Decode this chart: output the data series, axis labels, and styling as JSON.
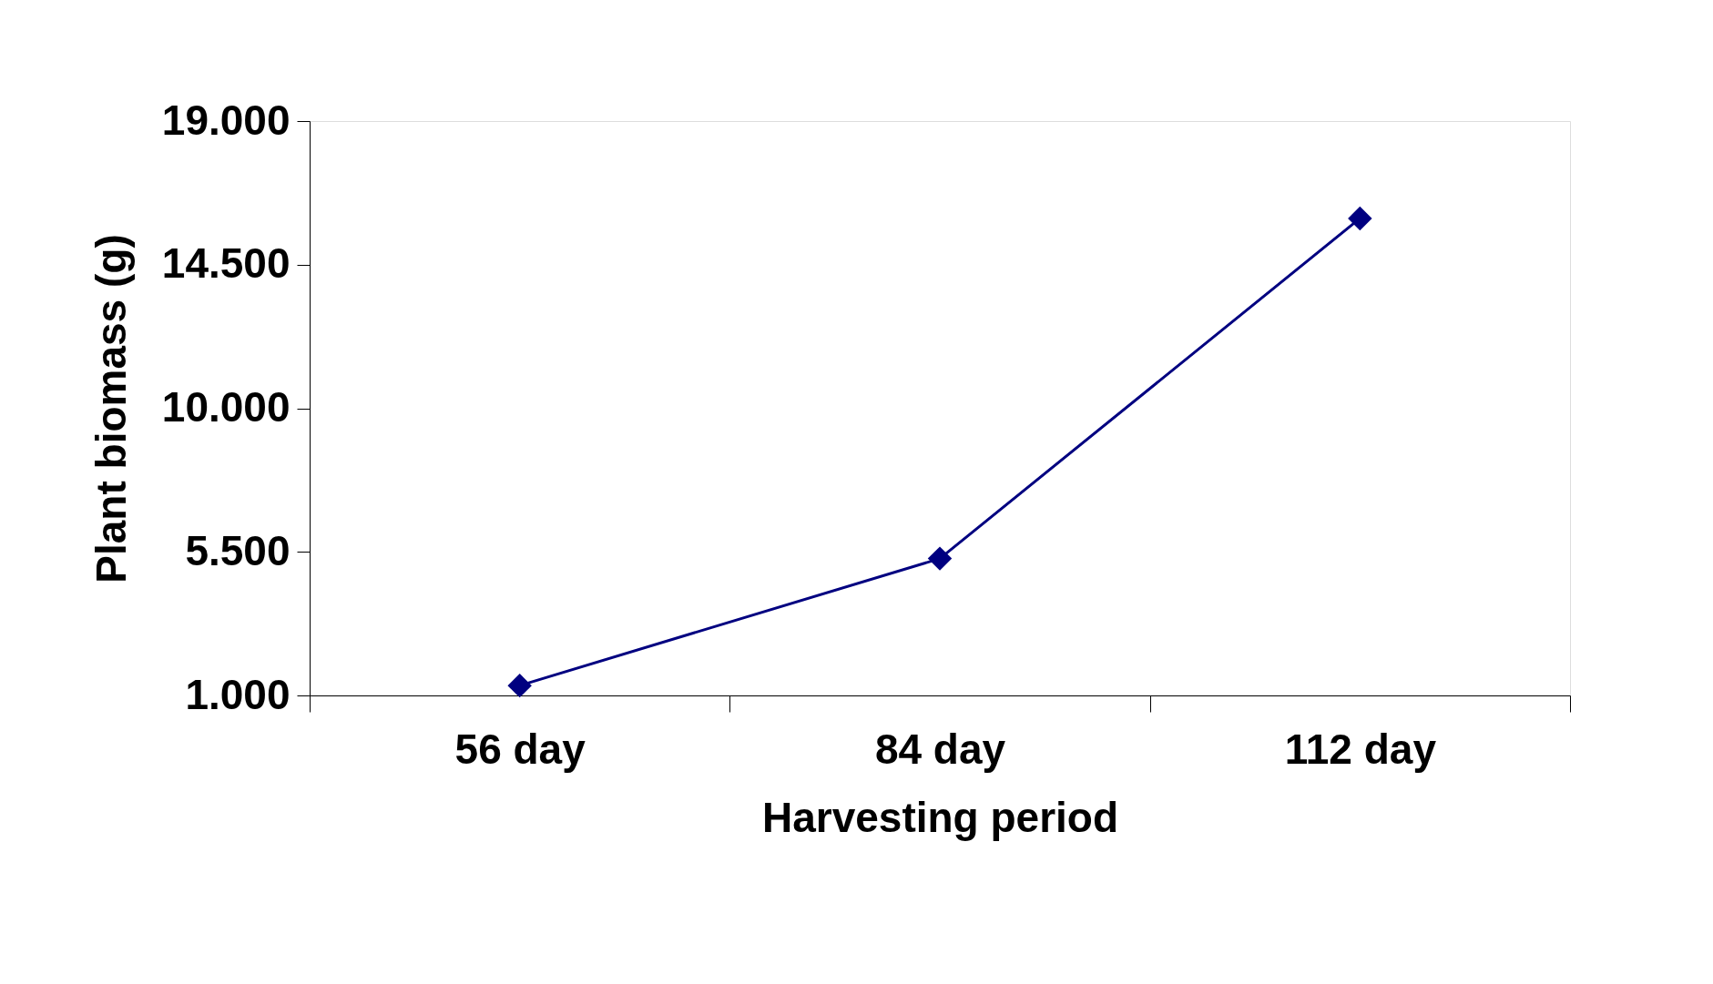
{
  "chart_data": {
    "type": "line",
    "xlabel": "Harvesting period",
    "ylabel": "Plant biomass (g)",
    "categories": [
      "56 day",
      "84 day",
      "112 day"
    ],
    "series": [
      {
        "color": "#000080",
        "values": [
          1.31,
          5.29,
          15.95
        ]
      }
    ],
    "ylim": [
      1,
      19
    ],
    "yticks": [
      {
        "value": 1,
        "label": "1.000"
      },
      {
        "value": 5.5,
        "label": "5.500"
      },
      {
        "value": 10,
        "label": "10.000"
      },
      {
        "value": 14.5,
        "label": "14.500"
      },
      {
        "value": 19,
        "label": "19.000"
      }
    ],
    "marker": "diamond",
    "grid": false
  }
}
